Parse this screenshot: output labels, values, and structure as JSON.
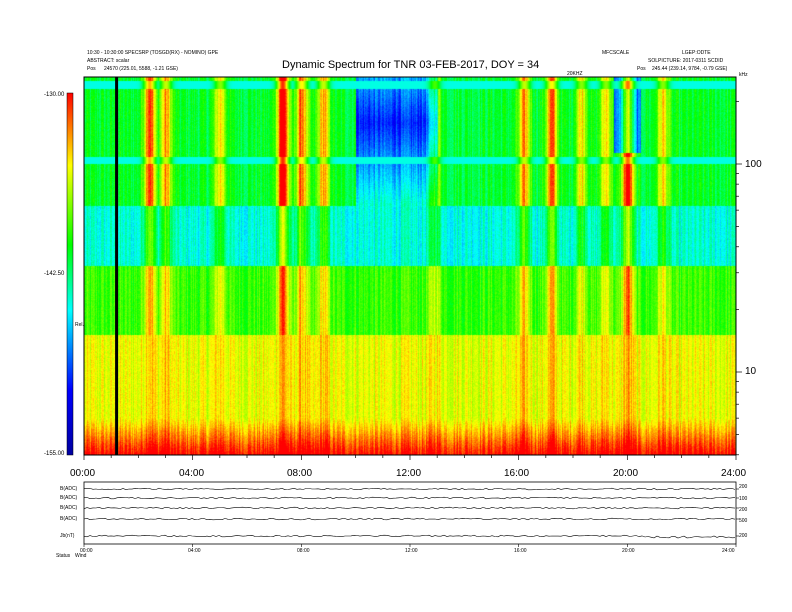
{
  "header": {
    "title": "Dynamic Spectrum for TNR 03-FEB-2017, DOY = 34",
    "left_line1": "10:30 - 10:30:00 SPECSRP (TOSGD(RX) - NOMINO) GPE",
    "left_line2": "ABSTRACT: scalar",
    "left_pos_label": "Pos",
    "left_pos_value": "24570 (225.01, 5588, -1.21 GSE)",
    "right_line1": "MFCSCALE",
    "right_line2": "LGEP:ODTE",
    "right_line3": "SOLPICTURE: 2017-0311 SCDID",
    "right_pos_label": "Pos",
    "right_pos_value": "245.44 (239.14, 9784, -0.79 GSE)",
    "marker_label": "20KHZ",
    "khz_label": "kHz",
    "colorbar_axis_label": "Rel."
  },
  "chart_data": {
    "type": "heatmap",
    "title": "Dynamic Spectrum for TNR 03-FEB-2017, DOY = 34",
    "x_ticks": [
      "00:00",
      "04:00",
      "08:00",
      "12:00",
      "16:00",
      "20:00",
      "24:00"
    ],
    "x_range_hours": [
      0,
      24
    ],
    "y_scale": "log",
    "y_ticks": [
      "10",
      "100"
    ],
    "y_unit": "kHz",
    "colorbar_ticks": [
      "-130.00",
      "-142.50",
      "-155.00"
    ],
    "colorbar_range": [
      -155.0,
      -130.0
    ],
    "colormap": [
      "#0000a0",
      "#0000ff",
      "#00ffff",
      "#00ff00",
      "#ffff00",
      "#ff0000"
    ],
    "vertical_marker_hour": 1.2,
    "bursts": [
      {
        "hour": 2.4,
        "strength": 0.8
      },
      {
        "hour": 3.0,
        "strength": 0.6
      },
      {
        "hour": 5.0,
        "strength": 0.5
      },
      {
        "hour": 7.3,
        "strength": 1.0
      },
      {
        "hour": 8.0,
        "strength": 0.7
      },
      {
        "hour": 8.8,
        "strength": 0.6
      },
      {
        "hour": 12.9,
        "strength": 0.4
      },
      {
        "hour": 16.2,
        "strength": 0.6
      },
      {
        "hour": 17.2,
        "strength": 0.7
      },
      {
        "hour": 18.3,
        "strength": 0.5
      },
      {
        "hour": 19.2,
        "strength": 0.5
      },
      {
        "hour": 20.0,
        "strength": 0.9
      },
      {
        "hour": 21.3,
        "strength": 0.5
      }
    ]
  },
  "bottom_panel": {
    "row_labels": [
      "B(ADC)",
      "B(ADC)",
      "B(ADC)",
      "B(ADC)",
      "Jb(nT)"
    ],
    "right_values": [
      "200",
      "100",
      "200",
      "500",
      "200"
    ],
    "x_ticks": [
      "00:00",
      "04:00",
      "08:00",
      "12:00",
      "16:00",
      "20:00",
      "24:00"
    ],
    "footer_label": "Status",
    "footer_value": "Wind"
  }
}
